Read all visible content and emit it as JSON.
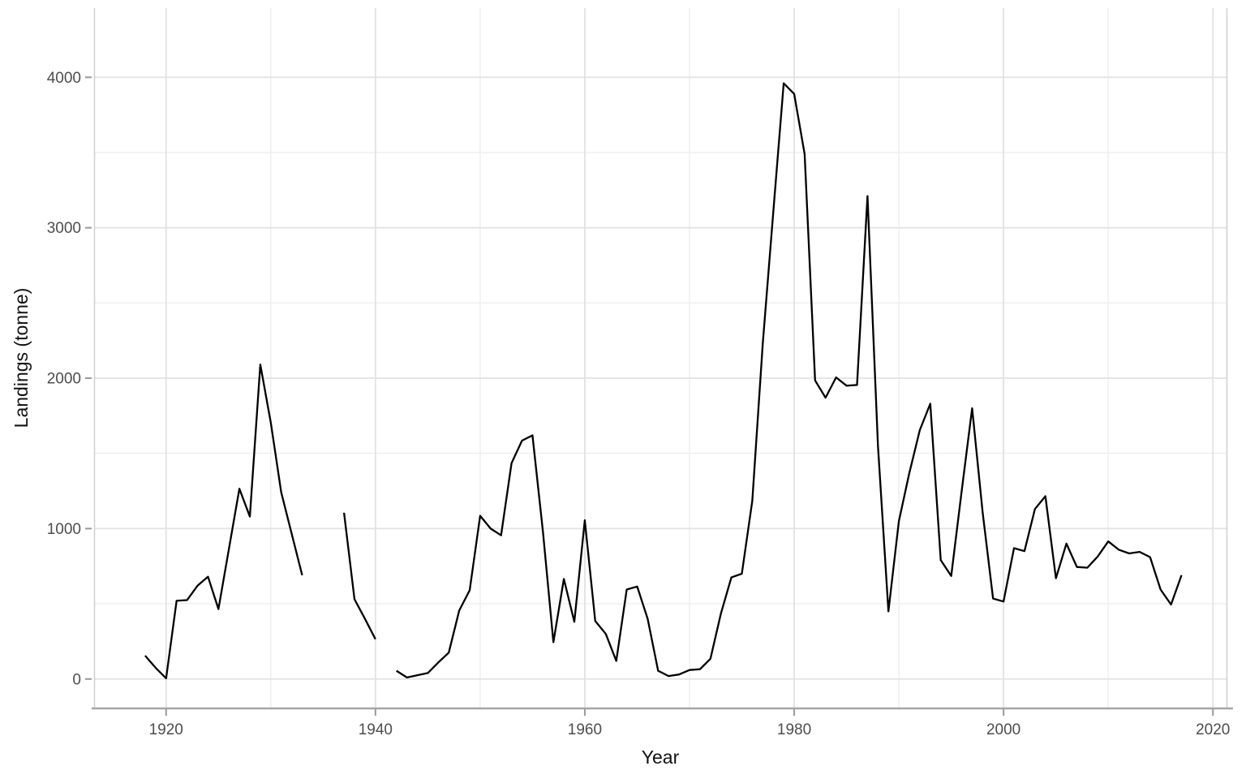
{
  "figure": {
    "background": "#ffffff",
    "panel_background": "#ffffff",
    "grid_major_color": "#e2e2e2",
    "grid_minor_color": "#f0f0f0",
    "axis_line_color": "#a6a6a6",
    "panel_edge_color": "#d0d0d0",
    "tick_mark_color": "#999999",
    "tick_label_color": "#4d4d4d",
    "axis_title_color": "#111111",
    "line_color": "#000000"
  },
  "chart_data": {
    "type": "line",
    "title": "",
    "xlabel": "Year",
    "ylabel": "Landings (tonne)",
    "grid": true,
    "legend": "none",
    "xlim": [
      1913.2,
      2021.3
    ],
    "ylim": [
      -190,
      4460
    ],
    "x_major_ticks": [
      1920,
      1940,
      1960,
      1980,
      2000,
      2020
    ],
    "x_minor_ticks": [
      1930,
      1950,
      1970,
      1990,
      2010
    ],
    "y_major_ticks": [
      0,
      1000,
      2000,
      3000,
      4000
    ],
    "y_minor_ticks": [
      500,
      1500,
      2500,
      3500
    ],
    "x_tick_labels": [
      "1920",
      "1940",
      "1960",
      "1980",
      "2000",
      "2020"
    ],
    "y_tick_labels": [
      "0",
      "1000",
      "2000",
      "3000",
      "4000"
    ],
    "series": [
      {
        "name": "Landings",
        "color": "#000000",
        "x": [
          1918,
          1919,
          1920,
          1921,
          1922,
          1923,
          1924,
          1925,
          1926,
          1927,
          1928,
          1929,
          1930,
          1931,
          1932,
          1933,
          1934,
          1935,
          1936,
          1937,
          1938,
          1939,
          1940,
          1941,
          1942,
          1943,
          1944,
          1945,
          1946,
          1947,
          1948,
          1949,
          1950,
          1951,
          1952,
          1953,
          1954,
          1955,
          1956,
          1957,
          1958,
          1959,
          1960,
          1961,
          1962,
          1963,
          1964,
          1965,
          1966,
          1967,
          1968,
          1969,
          1970,
          1971,
          1972,
          1973,
          1974,
          1975,
          1976,
          1977,
          1978,
          1979,
          1980,
          1981,
          1982,
          1983,
          1984,
          1985,
          1986,
          1987,
          1988,
          1989,
          1990,
          1991,
          1992,
          1993,
          1994,
          1995,
          1996,
          1997,
          1998,
          1999,
          2000,
          2001,
          2002,
          2003,
          2004,
          2005,
          2006,
          2007,
          2008,
          2009,
          2010,
          2011,
          2012,
          2013,
          2014,
          2015,
          2016,
          2017
        ],
        "y": [
          155,
          75,
          5,
          520,
          525,
          620,
          680,
          465,
          865,
          1265,
          1080,
          2090,
          1705,
          1240,
          965,
          690,
          null,
          null,
          null,
          1105,
          530,
          400,
          265,
          null,
          55,
          10,
          25,
          40,
          110,
          175,
          455,
          590,
          1085,
          1000,
          955,
          1435,
          1585,
          1620,
          980,
          245,
          665,
          380,
          1055,
          385,
          300,
          120,
          595,
          615,
          400,
          55,
          20,
          30,
          60,
          65,
          135,
          435,
          675,
          700,
          1185,
          2230,
          3100,
          3960,
          3890,
          3490,
          1985,
          1870,
          2005,
          1950,
          1955,
          3210,
          1550,
          450,
          1050,
          1370,
          1655,
          1830,
          790,
          685,
          1250,
          1800,
          1110,
          535,
          515,
          870,
          850,
          1130,
          1215,
          670,
          900,
          745,
          740,
          815,
          915,
          860,
          835,
          845,
          810,
          595,
          495,
          690
        ]
      }
    ]
  }
}
